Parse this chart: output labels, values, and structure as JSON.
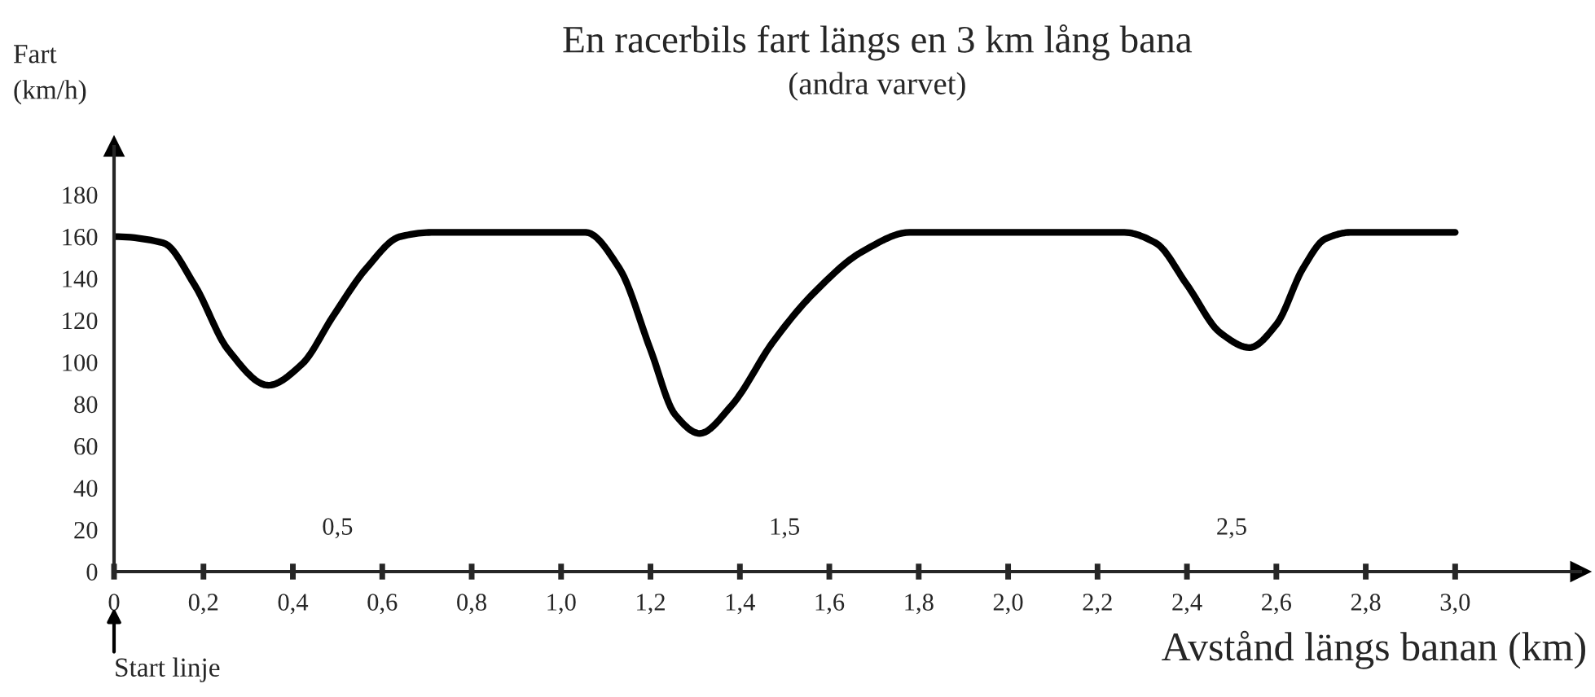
{
  "chart_data": {
    "type": "line",
    "title": "En racerbils fart längs en 3 km lång bana",
    "subtitle": "(andra varvet)",
    "ylabel": "Fart\n(km/h)",
    "xlabel": "Avstånd längs banan (km)",
    "annotations": [
      "Start linje"
    ],
    "x": [
      0,
      0.11,
      0.18,
      0.255,
      0.345,
      0.42,
      0.49,
      0.565,
      0.64,
      0.71,
      1.055,
      1.13,
      1.2,
      1.255,
      1.31,
      1.38,
      1.475,
      1.565,
      1.675,
      1.78,
      2.26,
      2.33,
      2.4,
      2.475,
      2.54,
      2.6,
      2.66,
      2.71,
      2.765,
      3.0
    ],
    "series": [
      {
        "color": "#000000",
        "values": [
          160,
          157,
          137,
          106,
          89,
          99,
          122,
          145,
          160,
          162,
          162,
          145,
          106,
          75,
          66,
          79,
          110,
          133,
          153,
          162,
          162,
          157,
          137,
          114,
          107,
          118,
          145,
          159,
          162,
          162
        ]
      }
    ],
    "xlim": [
      0,
      3.28
    ],
    "x2lim": [
      0,
      3.28
    ],
    "ylim": [
      0,
      203
    ],
    "xticks": [
      {
        "value": 0,
        "label": "0"
      },
      {
        "value": 0.2,
        "label": "0,2"
      },
      {
        "value": 0.4,
        "label": "0,4"
      },
      {
        "value": 0.6,
        "label": "0,6"
      },
      {
        "value": 0.8,
        "label": "0,8"
      },
      {
        "value": 1.0,
        "label": "1,0"
      },
      {
        "value": 1.2,
        "label": "1,2"
      },
      {
        "value": 1.4,
        "label": "1,4"
      },
      {
        "value": 1.6,
        "label": "1,6"
      },
      {
        "value": 1.8,
        "label": "1,8"
      },
      {
        "value": 2.0,
        "label": "2,0"
      },
      {
        "value": 2.2,
        "label": "2,2"
      },
      {
        "value": 2.4,
        "label": "2,4"
      },
      {
        "value": 2.6,
        "label": "2,6"
      },
      {
        "value": 2.8,
        "label": "2,8"
      },
      {
        "value": 3.0,
        "label": "3,0"
      }
    ],
    "x2ticks": [
      {
        "value": 0.5,
        "label": "0,5"
      },
      {
        "value": 1.5,
        "label": "1,5"
      },
      {
        "value": 2.5,
        "label": "2,5"
      }
    ],
    "yticks": [
      0,
      20,
      40,
      60,
      80,
      100,
      120,
      140,
      160,
      180
    ],
    "grid": false,
    "legend": false,
    "marker": "none",
    "line_style": "solid"
  }
}
